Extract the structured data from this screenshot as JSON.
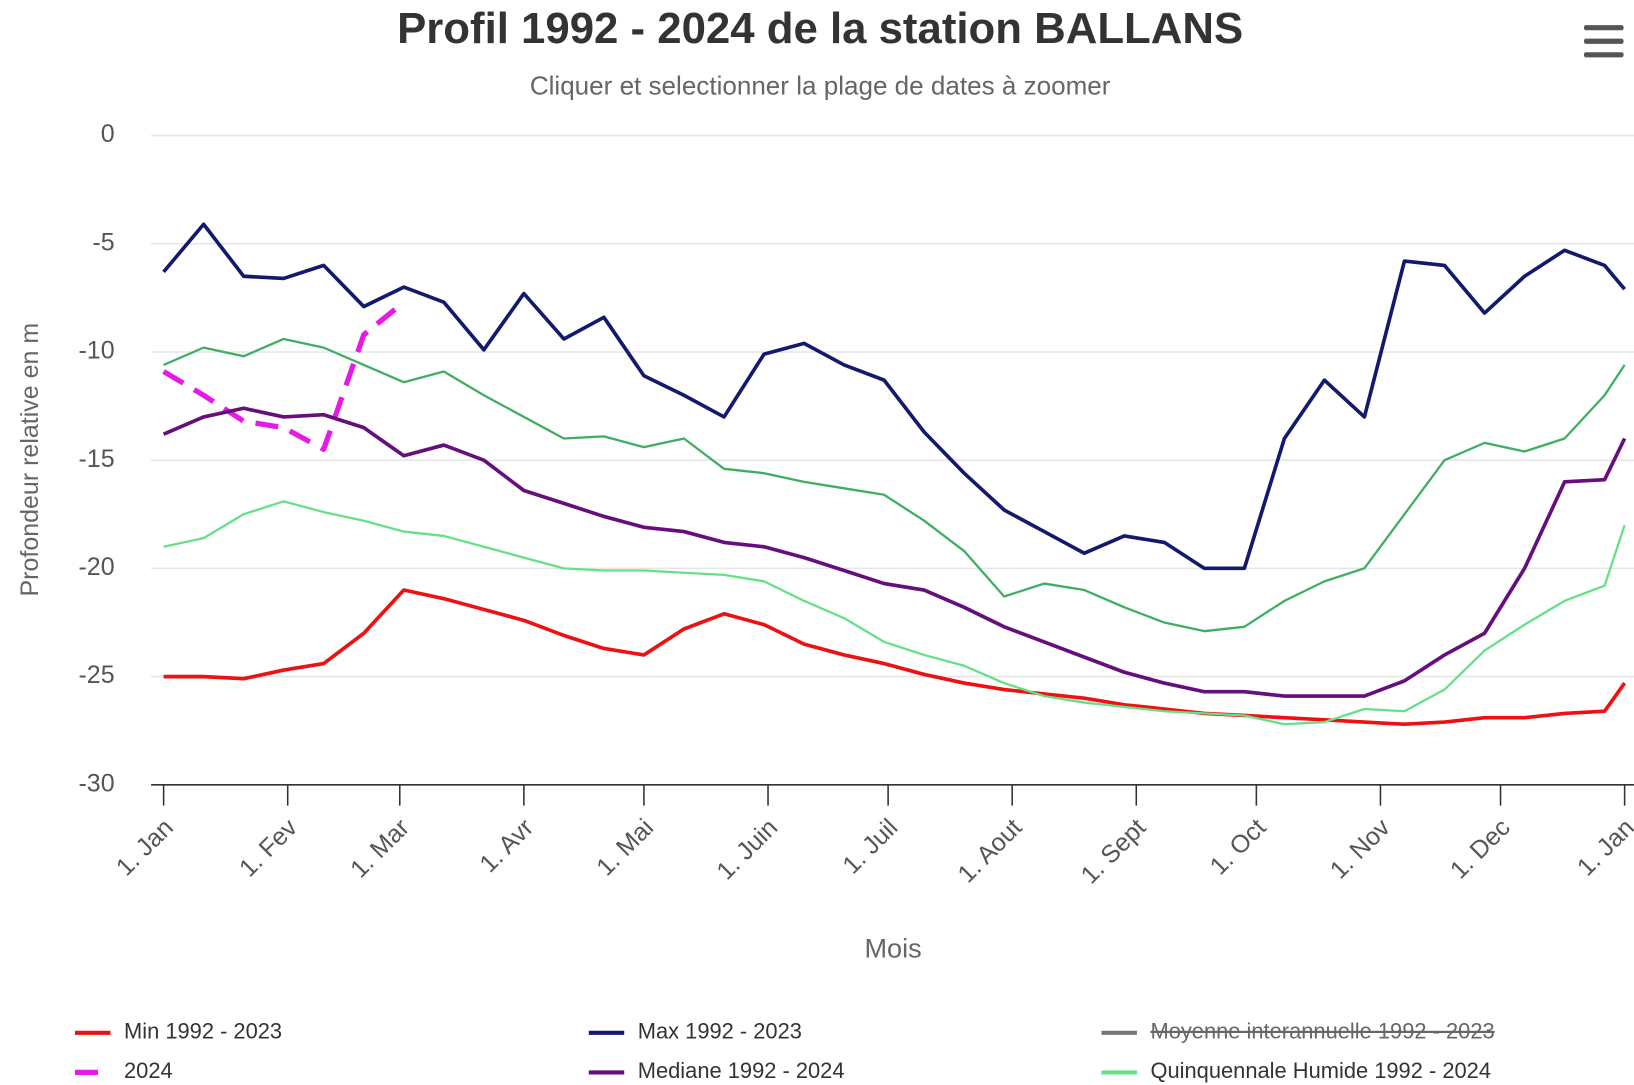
{
  "chart_data": {
    "type": "line",
    "title": "Profil 1992 - 2024 de la station BALLANS",
    "subtitle": "Cliquer et selectionner la plage de dates à zoomer",
    "x_label": "Mois",
    "y_label": "Profondeur relative en m",
    "x": [
      0,
      10,
      20,
      30,
      40,
      50,
      60,
      70,
      80,
      90,
      100,
      110,
      120,
      130,
      140,
      150,
      160,
      170,
      180,
      190,
      200,
      210,
      220,
      230,
      240,
      250,
      260,
      270,
      280,
      290,
      300,
      310,
      320,
      330,
      340,
      350,
      360,
      365
    ],
    "xlim": [
      0,
      365
    ],
    "xticks": [
      {
        "value": 0,
        "label": "1. Jan"
      },
      {
        "value": 31,
        "label": "1. Fev"
      },
      {
        "value": 59,
        "label": "1. Mar"
      },
      {
        "value": 90,
        "label": "1. Avr"
      },
      {
        "value": 120,
        "label": "1. Mai"
      },
      {
        "value": 151,
        "label": "1. Juin"
      },
      {
        "value": 181,
        "label": "1. Juil"
      },
      {
        "value": 212,
        "label": "1. Aout"
      },
      {
        "value": 243,
        "label": "1. Sept"
      },
      {
        "value": 273,
        "label": "1. Oct"
      },
      {
        "value": 304,
        "label": "1. Nov"
      },
      {
        "value": 334,
        "label": "1. Dec"
      },
      {
        "value": 365,
        "label": "1. Jan"
      }
    ],
    "ylim": [
      -30,
      0
    ],
    "yticks": [
      0,
      -5,
      -10,
      -15,
      -20,
      -25,
      -30
    ],
    "grid": true,
    "series": [
      {
        "name": "Min 1992 - 2023",
        "color": "#ee1111",
        "values": [
          -25.0,
          -25.0,
          -25.1,
          -24.7,
          -24.4,
          -23.0,
          -21.0,
          -21.4,
          -21.9,
          -22.4,
          -23.1,
          -23.7,
          -24.0,
          -22.8,
          -22.1,
          -22.6,
          -23.5,
          -24.0,
          -24.4,
          -24.9,
          -25.3,
          -25.6,
          -25.8,
          -26.0,
          -26.3,
          -26.5,
          -26.7,
          -26.8,
          -26.9,
          -27.0,
          -27.1,
          -27.2,
          -27.1,
          -26.9,
          -26.9,
          -26.7,
          -26.6,
          -25.3
        ]
      },
      {
        "name": "2024",
        "color": "#e619e6",
        "dashed": true,
        "values": [
          -10.9,
          -12.0,
          -13.2,
          -13.5,
          -14.5,
          -9.2,
          -7.7,
          null,
          null,
          null,
          null,
          null,
          null,
          null,
          null,
          null,
          null,
          null,
          null,
          null,
          null,
          null,
          null,
          null,
          null,
          null,
          null,
          null,
          null,
          null,
          null,
          null,
          null,
          null,
          null,
          null,
          null,
          null
        ]
      },
      {
        "name": "Max 1992 - 2023",
        "color": "#131a6e",
        "values": [
          -6.3,
          -4.1,
          -6.5,
          -6.6,
          -6.0,
          -7.9,
          -7.0,
          -7.7,
          -9.9,
          -7.3,
          -9.4,
          -8.4,
          -11.1,
          -12.0,
          -13.0,
          -10.1,
          -9.6,
          -10.6,
          -11.3,
          -13.7,
          -15.6,
          -17.3,
          -18.3,
          -19.3,
          -18.5,
          -18.8,
          -20.0,
          -20.0,
          -14.0,
          -11.3,
          -13.0,
          -5.8,
          -6.0,
          -8.2,
          -6.5,
          -5.3,
          -6.0,
          -7.1
        ]
      },
      {
        "name": "Mediane 1992 - 2024",
        "color": "#650f7c",
        "values": [
          -13.8,
          -13.0,
          -12.6,
          -13.0,
          -12.9,
          -13.5,
          -14.8,
          -14.3,
          -15.0,
          -16.4,
          -17.0,
          -17.6,
          -18.1,
          -18.3,
          -18.8,
          -19.0,
          -19.5,
          -20.1,
          -20.7,
          -21.0,
          -21.8,
          -22.7,
          -23.4,
          -24.1,
          -24.8,
          -25.3,
          -25.7,
          -25.7,
          -25.9,
          -25.9,
          -25.9,
          -25.2,
          -24.0,
          -23.0,
          -20.0,
          -16.0,
          -15.9,
          -14.0
        ]
      },
      {
        "name": "Moyenne interannuelle 1992 - 2023",
        "color": "#666666",
        "visible": false
      },
      {
        "name": "Quinquennale Humide 1992 - 2024",
        "color": "#66e088",
        "values": [
          -19.0,
          -18.6,
          -17.5,
          -16.9,
          -17.4,
          -17.8,
          -18.3,
          -18.5,
          -19.0,
          -19.5,
          -20.0,
          -20.1,
          -20.1,
          -20.2,
          -20.3,
          -20.6,
          -21.5,
          -22.3,
          -23.4,
          -24.0,
          -24.5,
          -25.3,
          -25.9,
          -26.2,
          -26.4,
          -26.6,
          -26.7,
          -26.8,
          -27.2,
          -27.1,
          -26.5,
          -26.6,
          -25.6,
          -23.8,
          -22.6,
          -21.5,
          -20.8,
          -18.0
        ]
      },
      {
        "color": "#3fae63",
        "values": [
          -10.6,
          -9.8,
          -10.2,
          -9.4,
          -9.8,
          -10.6,
          -11.4,
          -10.9,
          -12.0,
          -13.0,
          -14.0,
          -13.9,
          -14.4,
          -14.0,
          -15.4,
          -15.6,
          -16.0,
          -16.3,
          -16.6,
          -17.8,
          -19.2,
          -21.3,
          -20.7,
          -21.0,
          -21.8,
          -22.5,
          -22.9,
          -22.7,
          -21.5,
          -20.6,
          -20.0,
          -17.5,
          -15.0,
          -14.2,
          -14.6,
          -14.0,
          -12.0,
          -10.6
        ]
      }
    ]
  }
}
